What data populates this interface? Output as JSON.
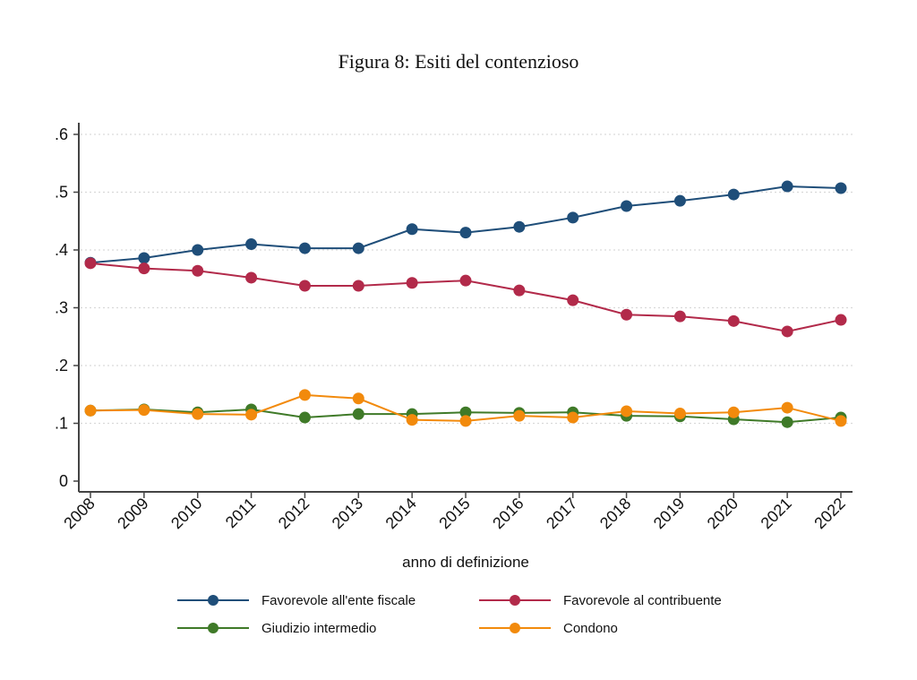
{
  "figure": {
    "caption": "Figura 8: Esiti del contenzioso"
  },
  "chart_data": {
    "type": "line",
    "title": "Figura 8: Esiti del contenzioso",
    "xlabel": "anno di definizione",
    "ylabel": "",
    "x": [
      2008,
      2009,
      2010,
      2011,
      2012,
      2013,
      2014,
      2015,
      2016,
      2017,
      2018,
      2019,
      2020,
      2021,
      2022
    ],
    "x_tick_labels": [
      "2008",
      "2009",
      "2010",
      "2011",
      "2012",
      "2013",
      "2014",
      "2015",
      "2016",
      "2017",
      "2018",
      "2019",
      "2020",
      "2021",
      "2022"
    ],
    "y_ticks": [
      0,
      0.1,
      0.2,
      0.3,
      0.4,
      0.5,
      0.6
    ],
    "y_tick_labels": [
      "0",
      ".1",
      ".2",
      ".3",
      ".4",
      ".5",
      ".6"
    ],
    "ylim": [
      0,
      0.6
    ],
    "grid": "horizontal dotted",
    "legend_placement": "bottom",
    "series": [
      {
        "name": "Favorevole all'ente fiscale",
        "color": "#1f4e79",
        "values": [
          0.378,
          0.386,
          0.4,
          0.41,
          0.403,
          0.403,
          0.436,
          0.43,
          0.44,
          0.456,
          0.476,
          0.485,
          0.496,
          0.51,
          0.507
        ]
      },
      {
        "name": "Favorevole al contribuente",
        "color": "#b22a4a",
        "values": [
          0.377,
          0.368,
          0.364,
          0.352,
          0.338,
          0.338,
          0.343,
          0.347,
          0.33,
          0.313,
          0.288,
          0.285,
          0.277,
          0.259,
          0.279
        ]
      },
      {
        "name": "Giudizio intermedio",
        "color": "#3f7a28",
        "values": [
          0.122,
          0.124,
          0.119,
          0.124,
          0.11,
          0.116,
          0.116,
          0.119,
          0.118,
          0.119,
          0.113,
          0.112,
          0.107,
          0.102,
          0.11
        ]
      },
      {
        "name": "Condono",
        "color": "#f28a0c",
        "values": [
          0.122,
          0.123,
          0.116,
          0.115,
          0.149,
          0.143,
          0.106,
          0.104,
          0.113,
          0.11,
          0.121,
          0.117,
          0.119,
          0.127,
          0.104
        ]
      }
    ]
  }
}
